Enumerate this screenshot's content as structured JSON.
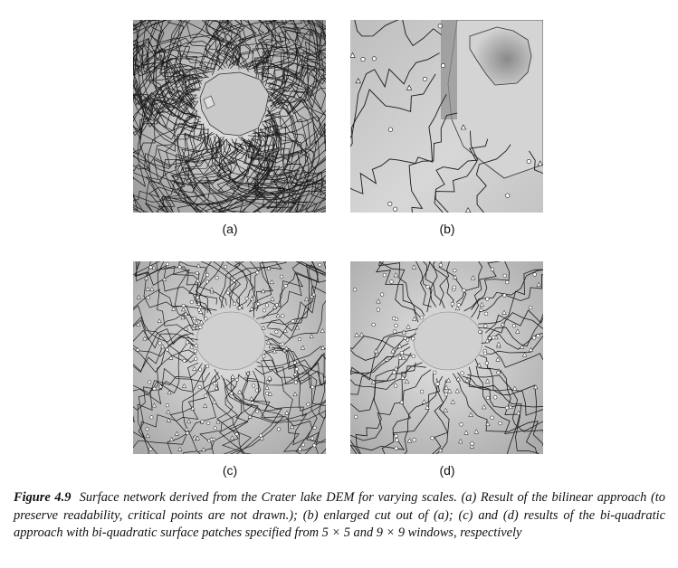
{
  "panels": [
    {
      "id": "a",
      "label": "(a)"
    },
    {
      "id": "b",
      "label": "(b)"
    },
    {
      "id": "c",
      "label": "(c)"
    },
    {
      "id": "d",
      "label": "(d)"
    }
  ],
  "caption": {
    "figure_label": "Figure 4.9",
    "text": "Surface network derived from the Crater lake DEM for varying scales. (a) Result of the bilinear approach (to preserve readability, critical points are not drawn.); (b) enlarged cut out of (a); (c) and (d) results of the bi-quadratic approach with bi-quadratic surface patches specified from 5 × 5 and 9 × 9 windows, respectively"
  }
}
